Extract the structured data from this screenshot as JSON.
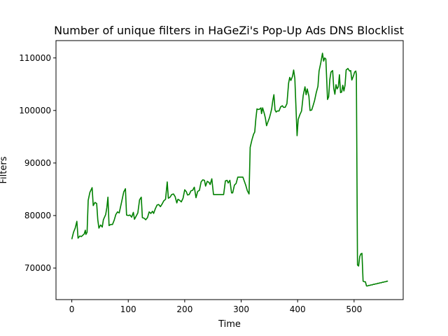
{
  "chart_data": {
    "type": "line",
    "title": "Number of unique filters in HaGeZi's Pop-Up Ads DNS Blocklist",
    "xlabel": "Time",
    "ylabel": "Filters",
    "xlim": [
      -28,
      587
    ],
    "ylim": [
      64000,
      113300
    ],
    "xticks": [
      0,
      100,
      200,
      300,
      400,
      500
    ],
    "yticks": [
      70000,
      80000,
      90000,
      100000,
      110000
    ],
    "ytick_labels": [
      "70000",
      "80000",
      "90000",
      "100000",
      "110000"
    ],
    "grid": false,
    "series": [
      {
        "color": "#008000",
        "points": [
          [
            0,
            75500
          ],
          [
            3,
            76800
          ],
          [
            6,
            77600
          ],
          [
            9,
            78900
          ],
          [
            11,
            75700
          ],
          [
            14,
            76100
          ],
          [
            17,
            76000
          ],
          [
            20,
            76300
          ],
          [
            22,
            76500
          ],
          [
            24,
            77200
          ],
          [
            25,
            76400
          ],
          [
            27,
            76800
          ],
          [
            29,
            82900
          ],
          [
            32,
            84400
          ],
          [
            36,
            85300
          ],
          [
            38,
            81900
          ],
          [
            41,
            82500
          ],
          [
            44,
            82300
          ],
          [
            46,
            79200
          ],
          [
            48,
            77600
          ],
          [
            51,
            78200
          ],
          [
            54,
            77800
          ],
          [
            56,
            79200
          ],
          [
            60,
            80200
          ],
          [
            62,
            81500
          ],
          [
            64,
            83500
          ],
          [
            66,
            78100
          ],
          [
            69,
            78300
          ],
          [
            72,
            78300
          ],
          [
            75,
            79100
          ],
          [
            78,
            80200
          ],
          [
            81,
            80700
          ],
          [
            84,
            80500
          ],
          [
            88,
            82500
          ],
          [
            92,
            84500
          ],
          [
            95,
            85100
          ],
          [
            97,
            80100
          ],
          [
            100,
            80000
          ],
          [
            103,
            80100
          ],
          [
            106,
            79700
          ],
          [
            109,
            80600
          ],
          [
            111,
            79300
          ],
          [
            114,
            79900
          ],
          [
            117,
            80500
          ],
          [
            120,
            83000
          ],
          [
            123,
            83500
          ],
          [
            125,
            79600
          ],
          [
            128,
            79500
          ],
          [
            131,
            79200
          ],
          [
            134,
            79600
          ],
          [
            137,
            80700
          ],
          [
            140,
            80400
          ],
          [
            143,
            80800
          ],
          [
            145,
            80400
          ],
          [
            148,
            81300
          ],
          [
            151,
            82000
          ],
          [
            154,
            82100
          ],
          [
            157,
            81700
          ],
          [
            160,
            82200
          ],
          [
            163,
            82800
          ],
          [
            166,
            83100
          ],
          [
            169,
            86400
          ],
          [
            171,
            83300
          ],
          [
            174,
            83500
          ],
          [
            177,
            84000
          ],
          [
            180,
            84100
          ],
          [
            183,
            83600
          ],
          [
            186,
            82400
          ],
          [
            188,
            83100
          ],
          [
            191,
            82900
          ],
          [
            194,
            82600
          ],
          [
            197,
            83300
          ],
          [
            200,
            84900
          ],
          [
            203,
            84500
          ],
          [
            205,
            83900
          ],
          [
            208,
            84000
          ],
          [
            211,
            84700
          ],
          [
            214,
            84800
          ],
          [
            217,
            85400
          ],
          [
            220,
            83400
          ],
          [
            223,
            84600
          ],
          [
            226,
            84800
          ],
          [
            229,
            86400
          ],
          [
            232,
            86800
          ],
          [
            235,
            86700
          ],
          [
            237,
            85600
          ],
          [
            240,
            86500
          ],
          [
            243,
            86300
          ],
          [
            245,
            85900
          ],
          [
            248,
            87000
          ],
          [
            251,
            84000
          ],
          [
            254,
            84000
          ],
          [
            257,
            84000
          ],
          [
            260,
            84000
          ],
          [
            263,
            84000
          ],
          [
            266,
            84000
          ],
          [
            269,
            84000
          ],
          [
            272,
            86600
          ],
          [
            275,
            86700
          ],
          [
            277,
            86200
          ],
          [
            280,
            86700
          ],
          [
            283,
            84300
          ],
          [
            285,
            84300
          ],
          [
            288,
            85800
          ],
          [
            291,
            86100
          ],
          [
            294,
            87300
          ],
          [
            297,
            87300
          ],
          [
            300,
            87300
          ],
          [
            303,
            87300
          ],
          [
            305,
            86700
          ],
          [
            308,
            85800
          ],
          [
            311,
            84700
          ],
          [
            314,
            84100
          ],
          [
            316,
            93000
          ],
          [
            319,
            94400
          ],
          [
            322,
            95500
          ],
          [
            324,
            95900
          ],
          [
            326,
            98400
          ],
          [
            328,
            100300
          ],
          [
            330,
            100200
          ],
          [
            332,
            100200
          ],
          [
            335,
            100500
          ],
          [
            336,
            99400
          ],
          [
            338,
            100500
          ],
          [
            341,
            99400
          ],
          [
            343,
            98500
          ],
          [
            345,
            97100
          ],
          [
            347,
            97700
          ],
          [
            350,
            98600
          ],
          [
            352,
            99400
          ],
          [
            354,
            100300
          ],
          [
            356,
            101900
          ],
          [
            358,
            103000
          ],
          [
            360,
            100100
          ],
          [
            362,
            99700
          ],
          [
            364,
            99900
          ],
          [
            367,
            99900
          ],
          [
            370,
            100700
          ],
          [
            373,
            100900
          ],
          [
            375,
            100600
          ],
          [
            378,
            100600
          ],
          [
            381,
            101300
          ],
          [
            384,
            105200
          ],
          [
            386,
            106300
          ],
          [
            388,
            105700
          ],
          [
            391,
            106500
          ],
          [
            393,
            107700
          ],
          [
            395,
            106100
          ],
          [
            398,
            97900
          ],
          [
            399,
            95200
          ],
          [
            401,
            98300
          ],
          [
            404,
            99200
          ],
          [
            407,
            99900
          ],
          [
            410,
            102900
          ],
          [
            413,
            104500
          ],
          [
            415,
            103000
          ],
          [
            417,
            104100
          ],
          [
            420,
            102700
          ],
          [
            422,
            100000
          ],
          [
            425,
            100100
          ],
          [
            427,
            100800
          ],
          [
            430,
            101900
          ],
          [
            433,
            103400
          ],
          [
            436,
            104600
          ],
          [
            438,
            107500
          ],
          [
            441,
            109100
          ],
          [
            444,
            110900
          ],
          [
            446,
            109400
          ],
          [
            448,
            110000
          ],
          [
            450,
            109800
          ],
          [
            453,
            102100
          ],
          [
            455,
            102600
          ],
          [
            457,
            105900
          ],
          [
            459,
            107300
          ],
          [
            462,
            107600
          ],
          [
            464,
            104200
          ],
          [
            466,
            103100
          ],
          [
            468,
            104900
          ],
          [
            470,
            104100
          ],
          [
            472,
            104500
          ],
          [
            474,
            106800
          ],
          [
            476,
            103400
          ],
          [
            478,
            103500
          ],
          [
            480,
            104800
          ],
          [
            482,
            103700
          ],
          [
            484,
            104800
          ],
          [
            486,
            107700
          ],
          [
            489,
            108000
          ],
          [
            492,
            107500
          ],
          [
            494,
            107600
          ],
          [
            496,
            105800
          ],
          [
            499,
            106600
          ],
          [
            501,
            107300
          ],
          [
            503,
            107500
          ],
          [
            504,
            106800
          ],
          [
            506,
            70600
          ],
          [
            508,
            70400
          ],
          [
            510,
            72200
          ],
          [
            512,
            72700
          ],
          [
            514,
            72800
          ],
          [
            516,
            67500
          ],
          [
            518,
            67400
          ],
          [
            520,
            67400
          ],
          [
            522,
            66600
          ],
          [
            524,
            66600
          ],
          [
            526,
            66700
          ],
          [
            528,
            66700
          ],
          [
            530,
            66800
          ],
          [
            532,
            66800
          ],
          [
            534,
            66900
          ],
          [
            536,
            66900
          ],
          [
            538,
            67000
          ],
          [
            540,
            67000
          ],
          [
            542,
            67100
          ],
          [
            544,
            67100
          ],
          [
            546,
            67200
          ],
          [
            548,
            67200
          ],
          [
            550,
            67300
          ],
          [
            552,
            67300
          ],
          [
            554,
            67400
          ],
          [
            556,
            67400
          ],
          [
            558,
            67500
          ],
          [
            560,
            67500
          ]
        ]
      }
    ]
  }
}
